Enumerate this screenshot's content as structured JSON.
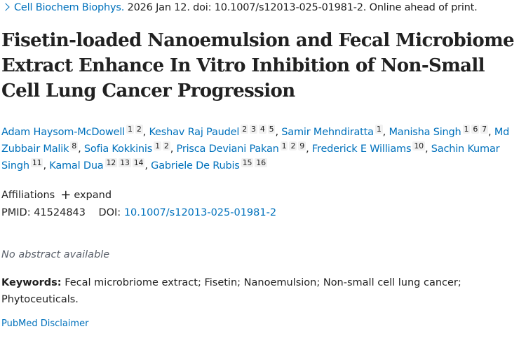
{
  "citation": {
    "journal": "Cell Biochem Biophys.",
    "rest": "2026 Jan 12. doi: 10.1007/s12013-025-01981-2. Online ahead of print."
  },
  "title": "Fisetin-loaded Nanoemulsion and Fecal Microbiome Extract Enhance In Vitro Inhibition of Non-Small Cell Lung Cancer Progression",
  "authors": [
    {
      "name": "Adam Haysom-McDowell",
      "affs": [
        "1",
        "2"
      ]
    },
    {
      "name": "Keshav Raj Paudel",
      "affs": [
        "2",
        "3",
        "4",
        "5"
      ]
    },
    {
      "name": "Samir Mehndiratta",
      "affs": [
        "1"
      ]
    },
    {
      "name": "Manisha Singh",
      "affs": [
        "1",
        "6",
        "7"
      ]
    },
    {
      "name": "Md Zubbair Malik",
      "affs": [
        "8"
      ]
    },
    {
      "name": "Sofia Kokkinis",
      "affs": [
        "1",
        "2"
      ]
    },
    {
      "name": "Prisca Deviani Pakan",
      "affs": [
        "1",
        "2",
        "9"
      ]
    },
    {
      "name": "Frederick E Williams",
      "affs": [
        "10"
      ]
    },
    {
      "name": "Sachin Kumar Singh",
      "affs": [
        "11"
      ]
    },
    {
      "name": "Kamal Dua",
      "affs": [
        "12",
        "13",
        "14"
      ]
    },
    {
      "name": "Gabriele De Rubis",
      "affs": [
        "15",
        "16"
      ]
    }
  ],
  "affiliations": {
    "label": "Affiliations",
    "expand": "expand",
    "icon": "plus-icon"
  },
  "ids": {
    "pmid_label": "PMID:",
    "pmid": "41524843",
    "doi_label": "DOI:",
    "doi": "10.1007/s12013-025-01981-2"
  },
  "abstract": "No abstract available",
  "keywords": {
    "label": "Keywords:",
    "text": "Fecal microbriome extract; Fisetin; Nanoemulsion; Non-small cell lung cancer; Phytoceuticals."
  },
  "disclaimer": "PubMed Disclaimer",
  "colors": {
    "link": "#0071bc",
    "text": "#212121"
  }
}
